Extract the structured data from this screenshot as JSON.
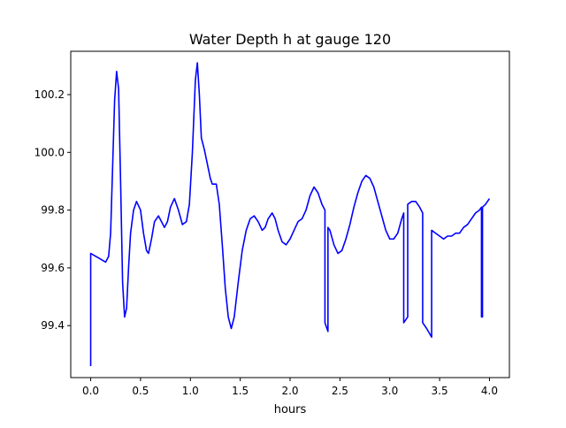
{
  "chart_data": {
    "type": "line",
    "title": "Water Depth h at gauge 120",
    "xlabel": "hours",
    "ylabel": "",
    "xlim": [
      -0.2,
      4.2
    ],
    "ylim": [
      99.22,
      100.35
    ],
    "x_ticks": [
      0.0,
      0.5,
      1.0,
      1.5,
      2.0,
      2.5,
      3.0,
      3.5,
      4.0
    ],
    "x_tick_labels": [
      "0.0",
      "0.5",
      "1.0",
      "1.5",
      "2.0",
      "2.5",
      "3.0",
      "3.5",
      "4.0"
    ],
    "y_ticks": [
      99.4,
      99.6,
      99.8,
      100.0,
      100.2
    ],
    "y_tick_labels": [
      "99.4",
      "99.6",
      "99.8",
      "100.0",
      "100.2"
    ],
    "grid": false,
    "legend": "none",
    "series": [
      {
        "color": "#0000ff",
        "points": [
          [
            0.0,
            99.26
          ],
          [
            0.0,
            99.65
          ],
          [
            0.05,
            99.64
          ],
          [
            0.1,
            99.63
          ],
          [
            0.15,
            99.62
          ],
          [
            0.18,
            99.64
          ],
          [
            0.2,
            99.72
          ],
          [
            0.22,
            99.95
          ],
          [
            0.24,
            100.18
          ],
          [
            0.26,
            100.28
          ],
          [
            0.28,
            100.22
          ],
          [
            0.3,
            99.9
          ],
          [
            0.32,
            99.55
          ],
          [
            0.34,
            99.43
          ],
          [
            0.36,
            99.46
          ],
          [
            0.38,
            99.6
          ],
          [
            0.4,
            99.72
          ],
          [
            0.43,
            99.8
          ],
          [
            0.46,
            99.83
          ],
          [
            0.5,
            99.8
          ],
          [
            0.53,
            99.72
          ],
          [
            0.56,
            99.66
          ],
          [
            0.58,
            99.65
          ],
          [
            0.61,
            99.7
          ],
          [
            0.64,
            99.76
          ],
          [
            0.68,
            99.78
          ],
          [
            0.71,
            99.76
          ],
          [
            0.74,
            99.74
          ],
          [
            0.77,
            99.76
          ],
          [
            0.8,
            99.81
          ],
          [
            0.84,
            99.84
          ],
          [
            0.88,
            99.8
          ],
          [
            0.92,
            99.75
          ],
          [
            0.96,
            99.76
          ],
          [
            0.99,
            99.82
          ],
          [
            1.02,
            100.0
          ],
          [
            1.05,
            100.25
          ],
          [
            1.07,
            100.31
          ],
          [
            1.09,
            100.2
          ],
          [
            1.11,
            100.05
          ],
          [
            1.14,
            100.01
          ],
          [
            1.17,
            99.96
          ],
          [
            1.2,
            99.91
          ],
          [
            1.22,
            99.89
          ],
          [
            1.26,
            99.89
          ],
          [
            1.29,
            99.82
          ],
          [
            1.32,
            99.68
          ],
          [
            1.35,
            99.53
          ],
          [
            1.38,
            99.43
          ],
          [
            1.41,
            99.39
          ],
          [
            1.44,
            99.43
          ],
          [
            1.48,
            99.55
          ],
          [
            1.52,
            99.66
          ],
          [
            1.56,
            99.73
          ],
          [
            1.6,
            99.77
          ],
          [
            1.64,
            99.78
          ],
          [
            1.68,
            99.76
          ],
          [
            1.72,
            99.73
          ],
          [
            1.75,
            99.74
          ],
          [
            1.78,
            99.77
          ],
          [
            1.82,
            99.79
          ],
          [
            1.85,
            99.77
          ],
          [
            1.88,
            99.73
          ],
          [
            1.92,
            99.69
          ],
          [
            1.96,
            99.68
          ],
          [
            2.0,
            99.7
          ],
          [
            2.04,
            99.73
          ],
          [
            2.08,
            99.76
          ],
          [
            2.12,
            99.77
          ],
          [
            2.16,
            99.8
          ],
          [
            2.2,
            99.85
          ],
          [
            2.24,
            99.88
          ],
          [
            2.28,
            99.86
          ],
          [
            2.32,
            99.82
          ],
          [
            2.35,
            99.8
          ],
          [
            2.35,
            99.41
          ],
          [
            2.38,
            99.38
          ],
          [
            2.38,
            99.74
          ],
          [
            2.4,
            99.73
          ],
          [
            2.44,
            99.68
          ],
          [
            2.48,
            99.65
          ],
          [
            2.52,
            99.66
          ],
          [
            2.56,
            99.7
          ],
          [
            2.6,
            99.75
          ],
          [
            2.64,
            99.81
          ],
          [
            2.68,
            99.86
          ],
          [
            2.72,
            99.9
          ],
          [
            2.76,
            99.92
          ],
          [
            2.8,
            99.91
          ],
          [
            2.84,
            99.88
          ],
          [
            2.88,
            99.83
          ],
          [
            2.92,
            99.78
          ],
          [
            2.96,
            99.73
          ],
          [
            3.0,
            99.7
          ],
          [
            3.04,
            99.7
          ],
          [
            3.08,
            99.72
          ],
          [
            3.12,
            99.77
          ],
          [
            3.14,
            99.79
          ],
          [
            3.14,
            99.41
          ],
          [
            3.18,
            99.43
          ],
          [
            3.18,
            99.82
          ],
          [
            3.22,
            99.83
          ],
          [
            3.26,
            99.83
          ],
          [
            3.3,
            99.81
          ],
          [
            3.33,
            99.79
          ],
          [
            3.33,
            99.41
          ],
          [
            3.37,
            99.39
          ],
          [
            3.42,
            99.36
          ],
          [
            3.42,
            99.73
          ],
          [
            3.46,
            99.72
          ],
          [
            3.5,
            99.71
          ],
          [
            3.54,
            99.7
          ],
          [
            3.58,
            99.71
          ],
          [
            3.62,
            99.71
          ],
          [
            3.66,
            99.72
          ],
          [
            3.7,
            99.72
          ],
          [
            3.74,
            99.74
          ],
          [
            3.78,
            99.75
          ],
          [
            3.82,
            99.77
          ],
          [
            3.86,
            99.79
          ],
          [
            3.9,
            99.8
          ],
          [
            3.92,
            99.81
          ],
          [
            3.92,
            99.43
          ],
          [
            3.93,
            99.43
          ],
          [
            3.93,
            99.81
          ],
          [
            3.96,
            99.82
          ],
          [
            4.0,
            99.84
          ]
        ]
      }
    ]
  }
}
